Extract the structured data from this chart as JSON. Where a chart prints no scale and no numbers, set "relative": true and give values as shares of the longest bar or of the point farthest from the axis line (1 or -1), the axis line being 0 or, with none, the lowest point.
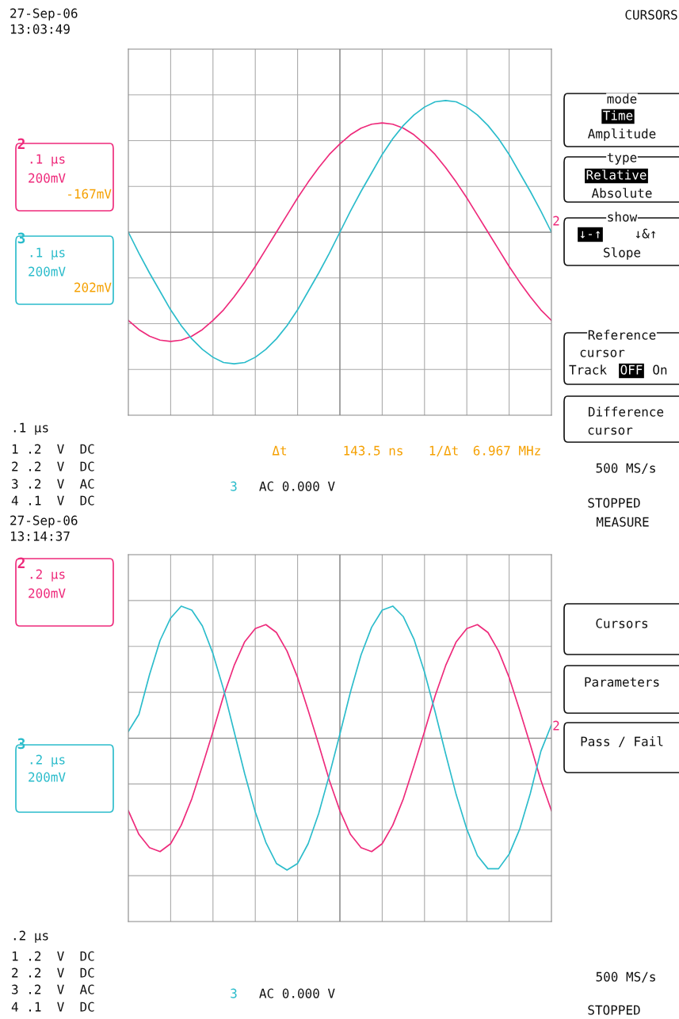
{
  "chart_data": [
    {
      "type": "line",
      "relative": true,
      "grid": true,
      "legend": false,
      "categories": [
        null,
        null,
        null,
        null,
        null,
        null,
        null,
        null,
        null,
        null,
        null,
        null,
        null,
        null,
        null,
        null,
        null,
        null,
        null,
        null,
        null,
        null,
        null,
        null,
        null,
        null,
        null,
        null,
        null,
        null,
        null,
        null,
        null,
        null,
        null,
        null,
        null,
        null,
        null,
        null,
        null
      ],
      "series": [
        {
          "name": "2",
          "color": "#ee2a7b",
          "values": [
            -0.67,
            -0.74,
            -0.79,
            -0.82,
            -0.83,
            -0.82,
            -0.79,
            -0.74,
            -0.67,
            -0.59,
            -0.49,
            -0.38,
            -0.26,
            -0.13,
            0,
            0.13,
            0.26,
            0.38,
            0.49,
            0.59,
            0.67,
            0.74,
            0.79,
            0.82,
            0.83,
            0.82,
            0.79,
            0.74,
            0.67,
            0.59,
            0.49,
            0.38,
            0.26,
            0.13,
            0,
            -0.13,
            -0.26,
            -0.38,
            -0.49,
            -0.59,
            -0.67
          ]
        },
        {
          "name": "3",
          "color": "#2bbccb",
          "values": [
            0,
            -0.16,
            -0.31,
            -0.45,
            -0.59,
            -0.71,
            -0.81,
            -0.89,
            -0.95,
            -0.99,
            -1,
            -0.99,
            -0.95,
            -0.89,
            -0.81,
            -0.71,
            -0.59,
            -0.45,
            -0.31,
            -0.16,
            0,
            0.16,
            0.31,
            0.45,
            0.59,
            0.71,
            0.81,
            0.89,
            0.95,
            0.99,
            1,
            0.99,
            0.95,
            0.89,
            0.81,
            0.71,
            0.59,
            0.45,
            0.31,
            0.16,
            0
          ]
        }
      ],
      "annotations": [
        "27-Sep-06",
        "13:03:49",
        "CURSORS",
        ".1 µs",
        "200mV",
        "-167mV",
        ".1 µs",
        "200mV",
        "202mV",
        "mode",
        "Time",
        "Amplitude",
        "type",
        "Relative",
        "Absolute",
        "show",
        "↓-↑",
        "↓&↑",
        "Slope",
        "Reference",
        "cursor",
        "Track",
        "OFF",
        "On",
        "Difference",
        "cursor",
        ".1 µs",
        "1 .2  V  DC",
        "2 .2  V  DC",
        "3 .2  V  AC",
        "4 .1  V  DC",
        "Δt",
        "143.5 ns",
        "1/Δt",
        "6.967 MHz",
        "3",
        "AC 0.000 V",
        "500 MS/s",
        "STOPPED",
        "2"
      ]
    },
    {
      "type": "line",
      "relative": true,
      "grid": true,
      "legend": false,
      "categories": [
        null,
        null,
        null,
        null,
        null,
        null,
        null,
        null,
        null,
        null,
        null,
        null,
        null,
        null,
        null,
        null,
        null,
        null,
        null,
        null,
        null,
        null,
        null,
        null,
        null,
        null,
        null,
        null,
        null,
        null,
        null,
        null,
        null,
        null,
        null,
        null,
        null,
        null,
        null,
        null,
        null
      ],
      "series": [
        {
          "name": "2",
          "color": "#ee2a7b",
          "values": [
            -0.55,
            -0.73,
            -0.83,
            -0.86,
            -0.8,
            -0.66,
            -0.46,
            -0.21,
            0.05,
            0.32,
            0.55,
            0.73,
            0.83,
            0.86,
            0.8,
            0.66,
            0.46,
            0.21,
            -0.05,
            -0.32,
            -0.55,
            -0.73,
            -0.83,
            -0.86,
            -0.8,
            -0.66,
            -0.46,
            -0.21,
            0.05,
            0.32,
            0.55,
            0.73,
            0.83,
            0.86,
            0.8,
            0.66,
            0.46,
            0.21,
            -0.05,
            -0.32,
            -0.55
          ]
        },
        {
          "name": "3",
          "color": "#2bbccb",
          "values": [
            0.05,
            0.18,
            0.48,
            0.74,
            0.91,
            1,
            0.97,
            0.85,
            0.64,
            0.37,
            0.05,
            -0.27,
            -0.56,
            -0.79,
            -0.95,
            -1,
            -0.95,
            -0.8,
            -0.57,
            -0.28,
            0.03,
            0.35,
            0.63,
            0.84,
            0.97,
            1,
            0.92,
            0.75,
            0.5,
            0.2,
            -0.12,
            -0.43,
            -0.69,
            -0.89,
            -0.99,
            -0.99,
            -0.88,
            -0.69,
            -0.42,
            -0.1,
            0.1
          ]
        }
      ],
      "annotations": [
        "27-Sep-06",
        "13:14:37",
        "MEASURE",
        ".2 µs",
        "200mV",
        ".2 µs",
        "200mV",
        "Cursors",
        "Parameters",
        "Pass / Fail",
        ".2 µs",
        "1 .2  V  DC",
        "2 .2  V  DC",
        "3 .2  V  AC",
        "4 .1  V  DC",
        "3",
        "AC 0.000 V",
        "500 MS/s",
        "STOPPED",
        "2"
      ]
    }
  ]
}
